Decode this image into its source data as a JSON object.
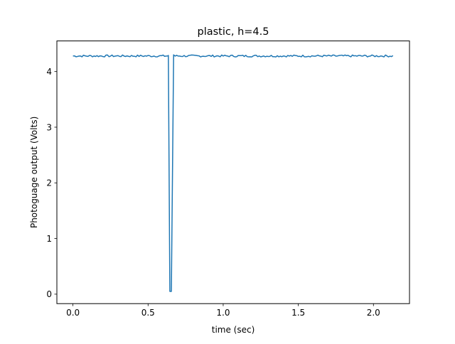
{
  "chart_data": {
    "type": "line",
    "title": "plastic, h=4.5",
    "xlabel": "time (sec)",
    "ylabel": "Photoguage output (Volts)",
    "xlim": [
      -0.107,
      2.24
    ],
    "ylim": [
      -0.17,
      4.55
    ],
    "xticks": [
      0.0,
      0.5,
      1.0,
      1.5,
      2.0
    ],
    "xtick_labels": [
      "0.0",
      "0.5",
      "1.0",
      "1.5",
      "2.0"
    ],
    "yticks": [
      0,
      1,
      2,
      3,
      4
    ],
    "ytick_labels": [
      "0",
      "1",
      "2",
      "3",
      "4"
    ],
    "grid": false,
    "series": [
      {
        "color": "#1f77b4",
        "baseline": 4.28,
        "noise": 0.018,
        "x_start": 0.0,
        "x_end": 2.13,
        "x_step": 0.01,
        "dip": [
          {
            "x": 0.635,
            "y": 4.29
          },
          {
            "x": 0.645,
            "y": 0.05
          },
          {
            "x": 0.655,
            "y": 0.05
          },
          {
            "x": 0.67,
            "y": 4.3
          }
        ]
      }
    ]
  }
}
